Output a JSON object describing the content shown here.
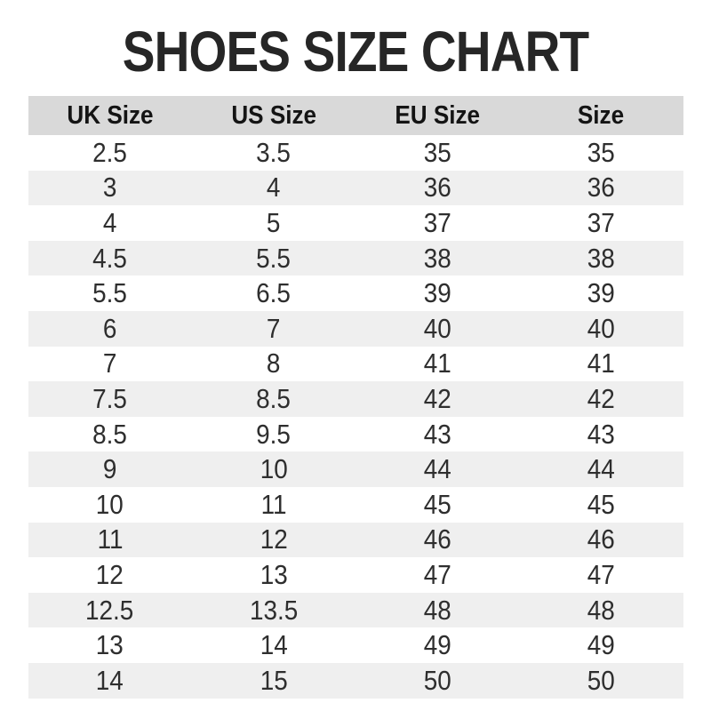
{
  "title": "SHOES SIZE CHART",
  "colors": {
    "page_background": "#ffffff",
    "title_color": "#262626",
    "header_background": "#d9d9d9",
    "row_stripe_background": "#efefef",
    "data_text_color": "#2e2e2e"
  },
  "chart_data": {
    "type": "table",
    "title": "SHOES SIZE CHART",
    "columns": [
      "UK Size",
      "US Size",
      "EU Size",
      "Size"
    ],
    "rows": [
      [
        "2.5",
        "3.5",
        "35",
        "35"
      ],
      [
        "3",
        "4",
        "36",
        "36"
      ],
      [
        "4",
        "5",
        "37",
        "37"
      ],
      [
        "4.5",
        "5.5",
        "38",
        "38"
      ],
      [
        "5.5",
        "6.5",
        "39",
        "39"
      ],
      [
        "6",
        "7",
        "40",
        "40"
      ],
      [
        "7",
        "8",
        "41",
        "41"
      ],
      [
        "7.5",
        "8.5",
        "42",
        "42"
      ],
      [
        "8.5",
        "9.5",
        "43",
        "43"
      ],
      [
        "9",
        "10",
        "44",
        "44"
      ],
      [
        "10",
        "11",
        "45",
        "45"
      ],
      [
        "11",
        "12",
        "46",
        "46"
      ],
      [
        "12",
        "13",
        "47",
        "47"
      ],
      [
        "12.5",
        "13.5",
        "48",
        "48"
      ],
      [
        "13",
        "14",
        "49",
        "49"
      ],
      [
        "14",
        "15",
        "50",
        "50"
      ]
    ],
    "layout": {
      "striped_rows": true,
      "first_data_row_background": "white",
      "alignment": "center"
    }
  }
}
